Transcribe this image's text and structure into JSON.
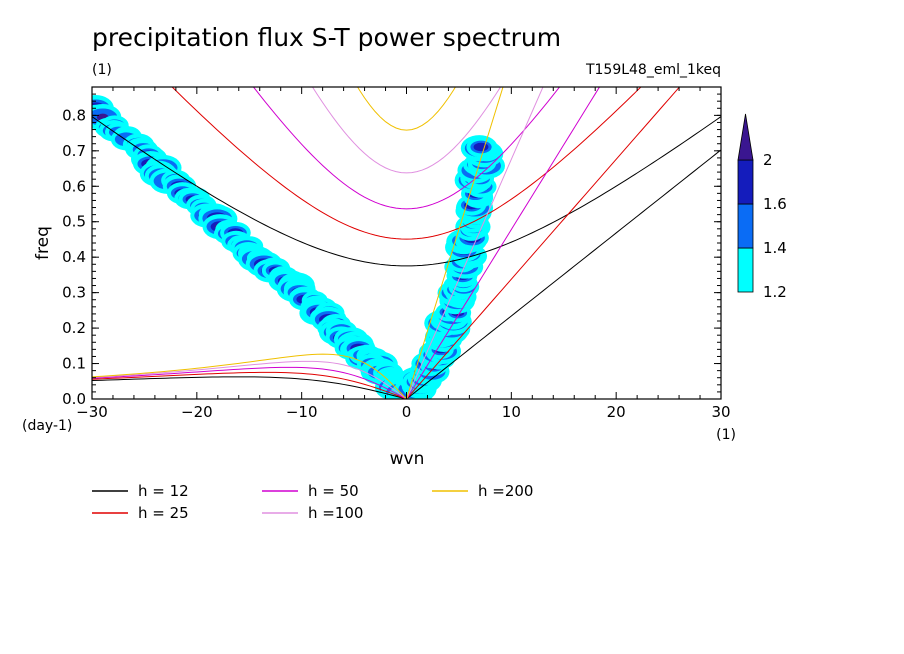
{
  "chart_data": {
    "type": "heatmap",
    "title": "precipitation flux S-T power spectrum",
    "subtitle_left": "(1)",
    "subtitle_right": "T159L48_eml_1keq",
    "xlabel": "wvn",
    "ylabel": "freq",
    "x_unit": "(1)",
    "y_unit": "(day-1)",
    "xlim": [
      -30,
      30
    ],
    "ylim": [
      0,
      0.88
    ],
    "x_ticks": [
      -30,
      -20,
      -10,
      0,
      10,
      20,
      30
    ],
    "x_tick_labels": [
      "−30",
      "−20",
      "−10",
      "0",
      "10",
      "20",
      "30"
    ],
    "y_ticks": [
      0.0,
      0.1,
      0.2,
      0.3,
      0.4,
      0.5,
      0.6,
      0.7,
      0.8
    ],
    "y_tick_labels": [
      "0.0",
      "0.1",
      "0.2",
      "0.3",
      "0.4",
      "0.5",
      "0.6",
      "0.7",
      "0.8"
    ],
    "colorbar": {
      "levels": [
        "1.2",
        "1.4",
        "1.6",
        "2"
      ],
      "colors": [
        "#00ffff",
        "#0a6cf5",
        "#141cbc",
        "#3a1690"
      ]
    },
    "dispersion_curves": [
      {
        "name": "h = 12",
        "h": 12,
        "color": "#000000"
      },
      {
        "name": "h = 25",
        "h": 25,
        "color": "#e00000"
      },
      {
        "name": "h = 50",
        "h": 50,
        "color": "#d000d0"
      },
      {
        "name": "h =100",
        "h": 100,
        "color": "#e090e0"
      },
      {
        "name": "h =200",
        "h": 200,
        "color": "#f0c000"
      }
    ],
    "spectral_ridges": [
      {
        "name": "westward ridge",
        "x": [
          -30,
          -24,
          -18,
          -12,
          -8,
          -4,
          -1,
          0
        ],
        "y": [
          0.82,
          0.66,
          0.5,
          0.35,
          0.24,
          0.12,
          0.04,
          0.0
        ]
      },
      {
        "name": "kelvin ridge",
        "x": [
          0,
          1.5,
          3,
          4.5,
          5.5,
          6.5,
          7.5
        ],
        "y": [
          0.0,
          0.05,
          0.13,
          0.25,
          0.38,
          0.55,
          0.72
        ]
      }
    ]
  }
}
